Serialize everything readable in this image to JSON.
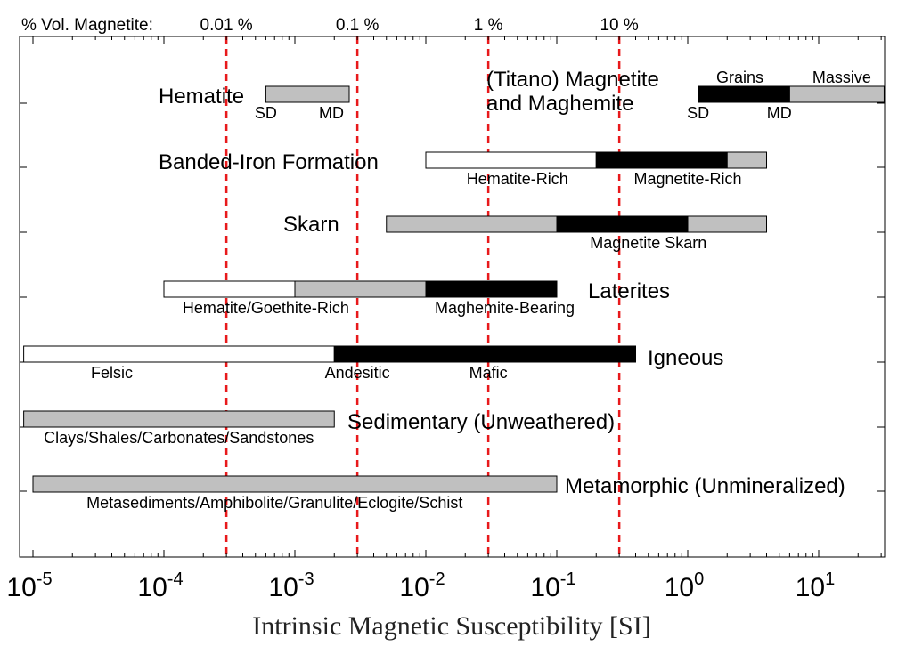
{
  "chart_data": {
    "type": "bar",
    "subtype": "range-bars",
    "xscale": "log",
    "xlim": [
      8.5e-06,
      31.6
    ],
    "xlabel": "Intrinsic Magnetic Susceptibility [SI]",
    "x_ticks": [
      {
        "value": 1e-05,
        "base": "10",
        "exp": "-5"
      },
      {
        "value": 0.0001,
        "base": "10",
        "exp": "-4"
      },
      {
        "value": 0.001,
        "base": "10",
        "exp": "-3"
      },
      {
        "value": 0.01,
        "base": "10",
        "exp": "-2"
      },
      {
        "value": 0.1,
        "base": "10",
        "exp": "-1"
      },
      {
        "value": 1,
        "base": "10",
        "exp": "0"
      },
      {
        "value": 10,
        "base": "10",
        "exp": "1"
      }
    ],
    "top_axis": {
      "label": "% Vol. Magnetite:",
      "lines": [
        {
          "label": "0.01 %",
          "x": 0.0003
        },
        {
          "label": "0.1 %",
          "x": 0.003
        },
        {
          "label": "1 %",
          "x": 0.03
        },
        {
          "label": "10 %",
          "x": 0.3
        }
      ],
      "line_color": "#e8191b"
    },
    "colors": {
      "white": "#ffffff",
      "gray": "#c0c0c0",
      "black": "#000000"
    },
    "rows": [
      {
        "title": "Hematite",
        "segments": [
          {
            "from": 0.0006,
            "to": 0.0026,
            "color": "gray"
          }
        ],
        "sublabels": [
          {
            "text": "SD",
            "x": 0.0006
          },
          {
            "text": "MD",
            "x": 0.0019
          }
        ]
      },
      {
        "title": "(Titano) Magnetite",
        "title2": "and Maghemite",
        "segments": [
          {
            "from": 1.2,
            "to": 6,
            "color": "black"
          },
          {
            "from": 6,
            "to": 31.6,
            "color": "gray"
          }
        ],
        "toplabels": [
          {
            "text": "Grains",
            "x": 2.5
          },
          {
            "text": "Massive",
            "x": 15
          }
        ],
        "sublabels": [
          {
            "text": "SD",
            "x": 1.2
          },
          {
            "text": "MD",
            "x": 5
          }
        ]
      },
      {
        "title": "Banded-Iron Formation",
        "segments": [
          {
            "from": 0.01,
            "to": 0.2,
            "color": "white"
          },
          {
            "from": 0.2,
            "to": 2,
            "color": "black"
          },
          {
            "from": 2,
            "to": 4,
            "color": "gray"
          }
        ],
        "sublabels": [
          {
            "text": "Hematite-Rich",
            "x": 0.05
          },
          {
            "text": "Magnetite-Rich",
            "x": 1
          }
        ]
      },
      {
        "title": "Skarn",
        "segments": [
          {
            "from": 0.005,
            "to": 0.1,
            "color": "gray"
          },
          {
            "from": 0.1,
            "to": 1,
            "color": "black"
          },
          {
            "from": 1,
            "to": 4,
            "color": "gray"
          }
        ],
        "sublabels": [
          {
            "text": "Magnetite Skarn",
            "x": 0.5
          }
        ]
      },
      {
        "title": "Laterites",
        "segments": [
          {
            "from": 0.0001,
            "to": 0.001,
            "color": "white"
          },
          {
            "from": 0.001,
            "to": 0.01,
            "color": "gray"
          },
          {
            "from": 0.01,
            "to": 0.1,
            "color": "black"
          }
        ],
        "sublabels": [
          {
            "text": "Hematite/Goethite-Rich",
            "x": 0.0006
          },
          {
            "text": "Maghemite-Bearing",
            "x": 0.04
          }
        ]
      },
      {
        "title": "Igneous",
        "segments": [
          {
            "from": 8.5e-06,
            "to": 0.002,
            "color": "white"
          },
          {
            "from": 0.002,
            "to": 0.4,
            "color": "black"
          }
        ],
        "sublabels": [
          {
            "text": "Felsic",
            "x": 4e-05
          },
          {
            "text": "Andesitic",
            "x": 0.003
          },
          {
            "text": "Mafic",
            "x": 0.03
          }
        ]
      },
      {
        "title": "Sedimentary (Unweathered)",
        "segments": [
          {
            "from": 8.5e-06,
            "to": 0.002,
            "color": "gray"
          }
        ],
        "sublabels": [
          {
            "text": "Clays/Shales/Carbonates/Sandstones",
            "x": 0.00013
          }
        ]
      },
      {
        "title": "Metamorphic (Unmineralized)",
        "segments": [
          {
            "from": 1e-05,
            "to": 0.1,
            "color": "gray"
          }
        ],
        "sublabels": [
          {
            "text": "Metasediments/Amphibolite/Granulite/Eclogite/Schist",
            "x": 0.0007
          }
        ]
      }
    ]
  }
}
